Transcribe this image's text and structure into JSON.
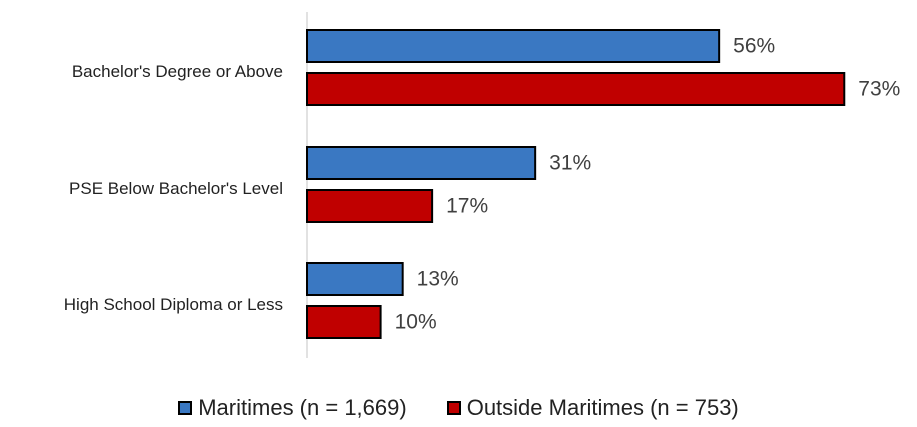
{
  "chart_data": {
    "type": "bar",
    "orientation": "horizontal",
    "categories": [
      "Bachelor's Degree or Above",
      "PSE Below Bachelor's Level",
      "High School Diploma or Less"
    ],
    "series": [
      {
        "name": "Maritimes (n = 1,669)",
        "color": "#3a78c2",
        "values": [
          56,
          31,
          13
        ],
        "labels": [
          "56%",
          "31%",
          "13%"
        ]
      },
      {
        "name": "Outside Maritimes (n = 753)",
        "color": "#c00000",
        "values": [
          73,
          17,
          10
        ],
        "labels": [
          "73%",
          "17%",
          "10%"
        ]
      }
    ],
    "xlim": [
      0,
      100
    ],
    "grid": false,
    "legend_position": "bottom"
  }
}
